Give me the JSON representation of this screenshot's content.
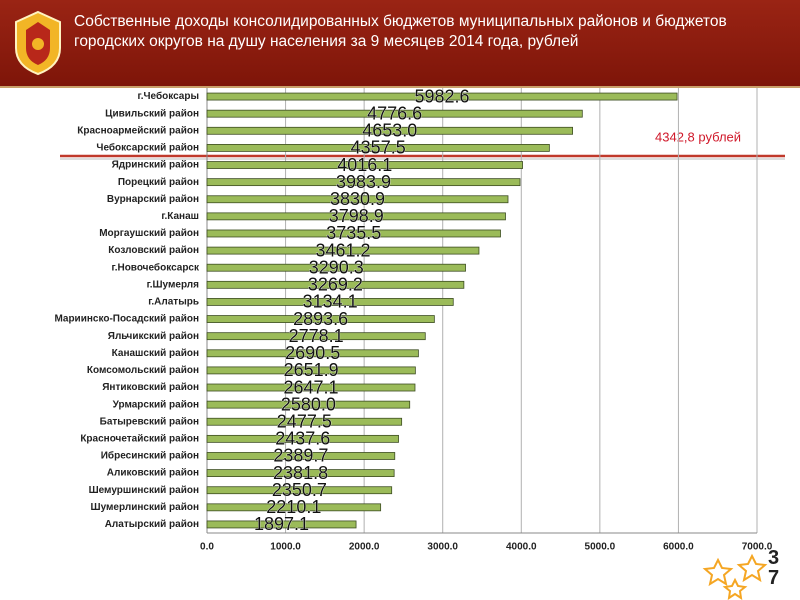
{
  "chart_data": {
    "type": "bar",
    "orientation": "horizontal",
    "title": "Собственные доходы консолидированных бюджетов муниципальных районов и бюджетов городских округов на душу населения за 9 месяцев 2014 года, рублей",
    "annotation": "4342,8 рублей",
    "categories": [
      "г.Чебоксары",
      "Цивильский район",
      "Красноармейский район",
      "Чебоксарский район",
      "Ядринский район",
      "Порецкий район",
      "Вурнарский район",
      "г.Канаш",
      "Моргаушский район",
      "Козловский район",
      "г.Новочебоксарск",
      "г.Шумерля",
      "г.Алатырь",
      "Мариинско-Посадский район",
      "Яльчикский район",
      "Канашский район",
      "Комсомольский район",
      "Янтиковский район",
      "Урмарский район",
      "Батыревский район",
      "Красночетайский район",
      "Ибресинский район",
      "Аликовский район",
      "Шемуршинский район",
      "Шумерлинский район",
      "Алатырский район"
    ],
    "values": [
      5982.6,
      4776.6,
      4653.0,
      4357.5,
      4016.1,
      3983.9,
      3830.9,
      3798.9,
      3735.5,
      3461.2,
      3290.3,
      3269.2,
      3134.1,
      2893.6,
      2778.1,
      2690.5,
      2651.9,
      2647.1,
      2580.0,
      2477.5,
      2437.6,
      2389.7,
      2381.8,
      2350.7,
      2210.1,
      1897.1
    ],
    "value_labels": [
      "5982.6",
      "4776.6",
      "4653.0",
      "4357.5",
      "4016.1",
      "3983.9",
      "3830.9",
      "3798.9",
      "3735.5",
      "3461.2",
      "3290.3",
      "3269.2",
      "3134.1",
      "2893.6",
      "2778.1",
      "2690.5",
      "2651.9",
      "2647.1",
      "2580.0",
      "2477.5",
      "2437.6",
      "2389.7",
      "2381.8",
      "2350.7",
      "2210.1",
      "1897.1"
    ],
    "color": "#9bbb59",
    "xlim": [
      0,
      7000
    ],
    "xticks": [
      {
        "value": 0,
        "label": "0.0"
      },
      {
        "value": 1000,
        "label": "1000.0"
      },
      {
        "value": 2000,
        "label": "2000.0"
      },
      {
        "value": 3000,
        "label": "3000.0"
      },
      {
        "value": 4000,
        "label": "4000.0"
      },
      {
        "value": 5000,
        "label": "5000.0"
      },
      {
        "value": 6000,
        "label": "6000.0"
      },
      {
        "value": 7000,
        "label": "7000.0"
      }
    ],
    "grid": true
  },
  "page_number": "37"
}
